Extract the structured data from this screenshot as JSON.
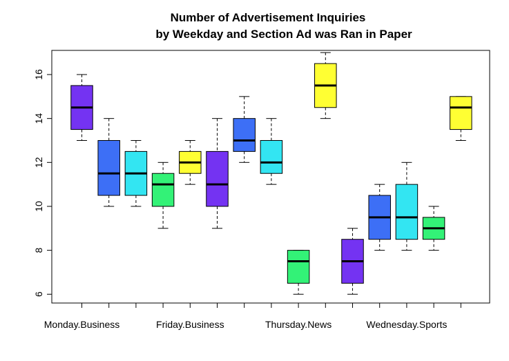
{
  "chart_data": {
    "type": "boxplot",
    "title_line1": "Number of Advertisement Inquiries",
    "title_line2": "by Weekday and Section Ad was Ran in Paper",
    "xlabel": "",
    "ylabel": "",
    "ylim": [
      5.6,
      17.1
    ],
    "y_ticks": [
      6,
      8,
      10,
      12,
      14,
      16
    ],
    "grid": false,
    "x_tick_labels_shown": [
      {
        "index": 0,
        "text": "Monday.Business"
      },
      {
        "index": 4,
        "text": "Friday.Business"
      },
      {
        "index": 8,
        "text": "Thursday.News"
      },
      {
        "index": 12,
        "text": "Wednesday.Sports"
      }
    ],
    "boxes": [
      {
        "min": 13,
        "q1": 13.5,
        "median": 14.5,
        "q3": 15.5,
        "max": 16,
        "color": "#7433F2"
      },
      {
        "min": 10,
        "q1": 10.5,
        "median": 11.5,
        "q3": 13,
        "max": 14,
        "color": "#3D6FF6"
      },
      {
        "min": 10,
        "q1": 10.5,
        "median": 11.5,
        "q3": 12.5,
        "max": 13,
        "color": "#33E5F2"
      },
      {
        "min": 9,
        "q1": 10,
        "median": 11,
        "q3": 11.5,
        "max": 12,
        "color": "#33F277"
      },
      {
        "min": 11,
        "q1": 11.5,
        "median": 12,
        "q3": 12.5,
        "max": 13,
        "color": "#FFFF33"
      },
      {
        "min": 9,
        "q1": 10,
        "median": 11,
        "q3": 12.5,
        "max": 14,
        "color": "#7433F2"
      },
      {
        "min": 12,
        "q1": 12.5,
        "median": 13,
        "q3": 14,
        "max": 15,
        "color": "#3D6FF6"
      },
      {
        "min": 11,
        "q1": 11.5,
        "median": 12,
        "q3": 13,
        "max": 14,
        "color": "#33E5F2"
      },
      {
        "min": 6,
        "q1": 6.5,
        "median": 7.5,
        "q3": 8,
        "max": 8,
        "color": "#33F277"
      },
      {
        "min": 14,
        "q1": 14.5,
        "median": 15.5,
        "q3": 16.5,
        "max": 17,
        "color": "#FFFF33"
      },
      {
        "min": 6,
        "q1": 6.5,
        "median": 7.5,
        "q3": 8.5,
        "max": 9,
        "color": "#7433F2"
      },
      {
        "min": 8,
        "q1": 8.5,
        "median": 9.5,
        "q3": 10.5,
        "max": 11,
        "color": "#3D6FF6"
      },
      {
        "min": 8,
        "q1": 8.5,
        "median": 9.5,
        "q3": 11,
        "max": 12,
        "color": "#33E5F2"
      },
      {
        "min": 8,
        "q1": 8.5,
        "median": 9,
        "q3": 9.5,
        "max": 10,
        "color": "#33F277"
      },
      {
        "min": 13,
        "q1": 13.5,
        "median": 14.5,
        "q3": 15,
        "max": 15,
        "color": "#FFFF33"
      }
    ]
  }
}
